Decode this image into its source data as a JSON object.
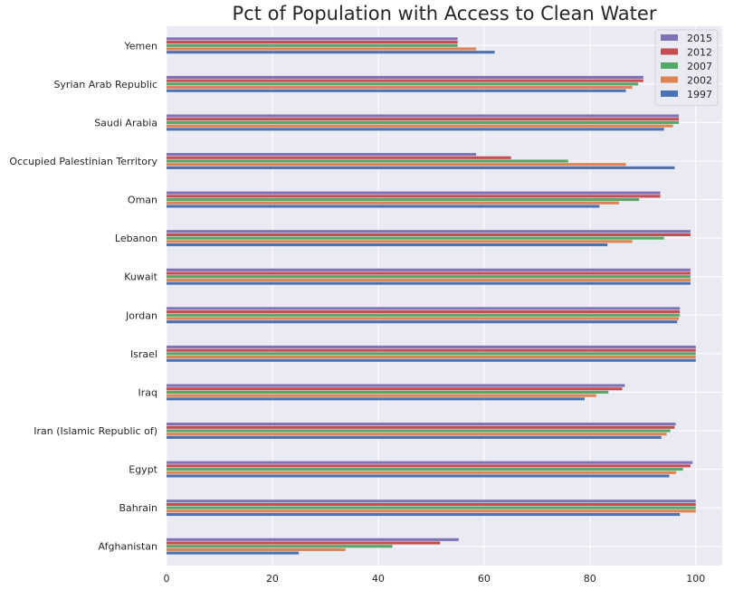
{
  "chart_data": {
    "type": "bar",
    "orientation": "horizontal",
    "title": "Pct of Population with Access to Clean Water",
    "xlabel": "",
    "ylabel": "",
    "xlim": [
      0,
      105
    ],
    "xticks": [
      0,
      20,
      40,
      60,
      80,
      100
    ],
    "grid": true,
    "legend_position": "top-right",
    "categories": [
      "Afghanistan",
      "Bahrain",
      "Egypt",
      "Iran (Islamic Republic of)",
      "Iraq",
      "Israel",
      "Jordan",
      "Kuwait",
      "Lebanon",
      "Oman",
      "Occupied Palestinian Territory",
      "Saudi Arabia",
      "Syrian Arab Republic",
      "Yemen"
    ],
    "series": [
      {
        "name": "1997",
        "color": "#4c72b0",
        "values": [
          25,
          97,
          95,
          93.5,
          79,
          100,
          96.5,
          99,
          83.3,
          81.8,
          96,
          94,
          86.8,
          62
        ]
      },
      {
        "name": "2002",
        "color": "#dd8452",
        "values": [
          33.8,
          100,
          96.3,
          94.5,
          81.2,
          100,
          96.8,
          99,
          88,
          85.5,
          86.8,
          95.7,
          88,
          58.5
        ]
      },
      {
        "name": "2007",
        "color": "#55a868",
        "values": [
          42.7,
          100,
          97.6,
          95.2,
          83.5,
          100,
          97,
          99,
          94,
          89.3,
          75.9,
          96.8,
          89.1,
          55
        ]
      },
      {
        "name": "2012",
        "color": "#c44e52",
        "values": [
          51.7,
          100,
          99,
          96,
          86.1,
          100,
          97,
          99,
          99,
          93.3,
          65.1,
          96.8,
          90.1,
          55
        ]
      },
      {
        "name": "2015",
        "color": "#8172b3",
        "values": [
          55.2,
          100,
          99.4,
          96.2,
          86.6,
          100,
          97,
          99,
          99,
          93.3,
          58.5,
          96.8,
          90.1,
          55
        ]
      }
    ]
  }
}
